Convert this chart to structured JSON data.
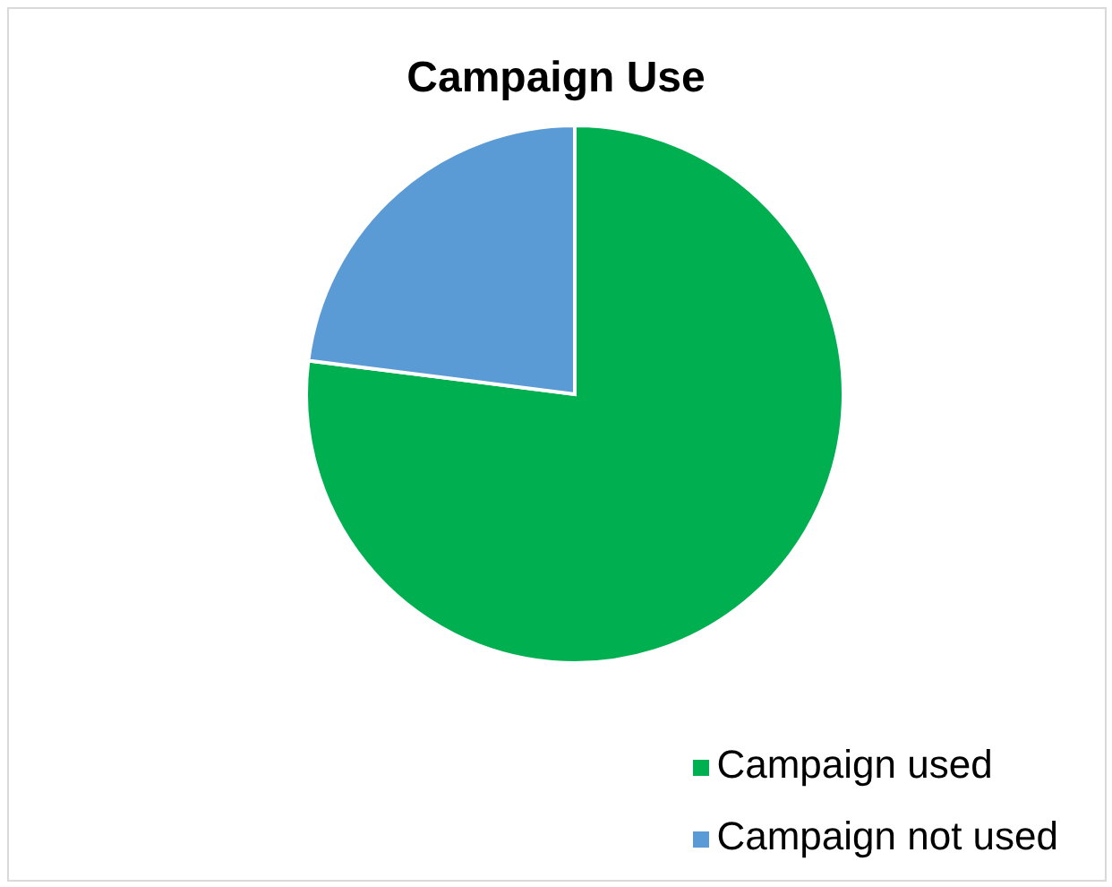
{
  "chart_data": {
    "type": "pie",
    "title": "Campaign Use",
    "categories": [
      "Campaign used",
      "Campaign not used"
    ],
    "values": [
      77,
      23
    ],
    "colors": [
      "#00b050",
      "#5b9bd5"
    ],
    "legend": "bottom right"
  }
}
